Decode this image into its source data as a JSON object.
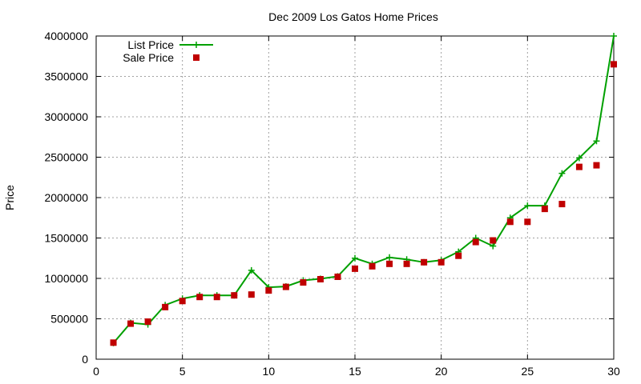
{
  "chart_data": {
    "type": "line",
    "title": "Dec 2009 Los Gatos Home Prices",
    "xlabel": "",
    "ylabel": "Price",
    "xlim": [
      0,
      30
    ],
    "ylim": [
      0,
      4000000
    ],
    "xticks": [
      0,
      5,
      10,
      15,
      20,
      25,
      30
    ],
    "yticks": [
      0,
      500000,
      1000000,
      1500000,
      2000000,
      2500000,
      3000000,
      3500000,
      4000000
    ],
    "grid": true,
    "legend_position": "top-left",
    "x": [
      1,
      2,
      3,
      4,
      5,
      6,
      7,
      8,
      9,
      10,
      11,
      12,
      13,
      14,
      15,
      16,
      17,
      18,
      19,
      20,
      21,
      22,
      23,
      24,
      25,
      26,
      27,
      28,
      29,
      30
    ],
    "series": [
      {
        "name": "List Price",
        "style": "line+cross",
        "color": "#00a000",
        "values": [
          200000,
          450000,
          430000,
          670000,
          750000,
          790000,
          790000,
          790000,
          1100000,
          890000,
          900000,
          975000,
          995000,
          1025000,
          1250000,
          1180000,
          1260000,
          1235000,
          1200000,
          1225000,
          1330000,
          1500000,
          1400000,
          1750000,
          1900000,
          1900000,
          2300000,
          2490000,
          2700000,
          4000000
        ]
      },
      {
        "name": "Sale Price",
        "style": "square",
        "color": "#c00000",
        "values": [
          205000,
          440000,
          465000,
          645000,
          720000,
          770000,
          770000,
          790000,
          800000,
          850000,
          895000,
          950000,
          990000,
          1020000,
          1120000,
          1150000,
          1180000,
          1180000,
          1200000,
          1200000,
          1280000,
          1450000,
          1470000,
          1700000,
          1700000,
          1860000,
          1920000,
          2380000,
          2400000,
          3650000
        ]
      }
    ]
  }
}
